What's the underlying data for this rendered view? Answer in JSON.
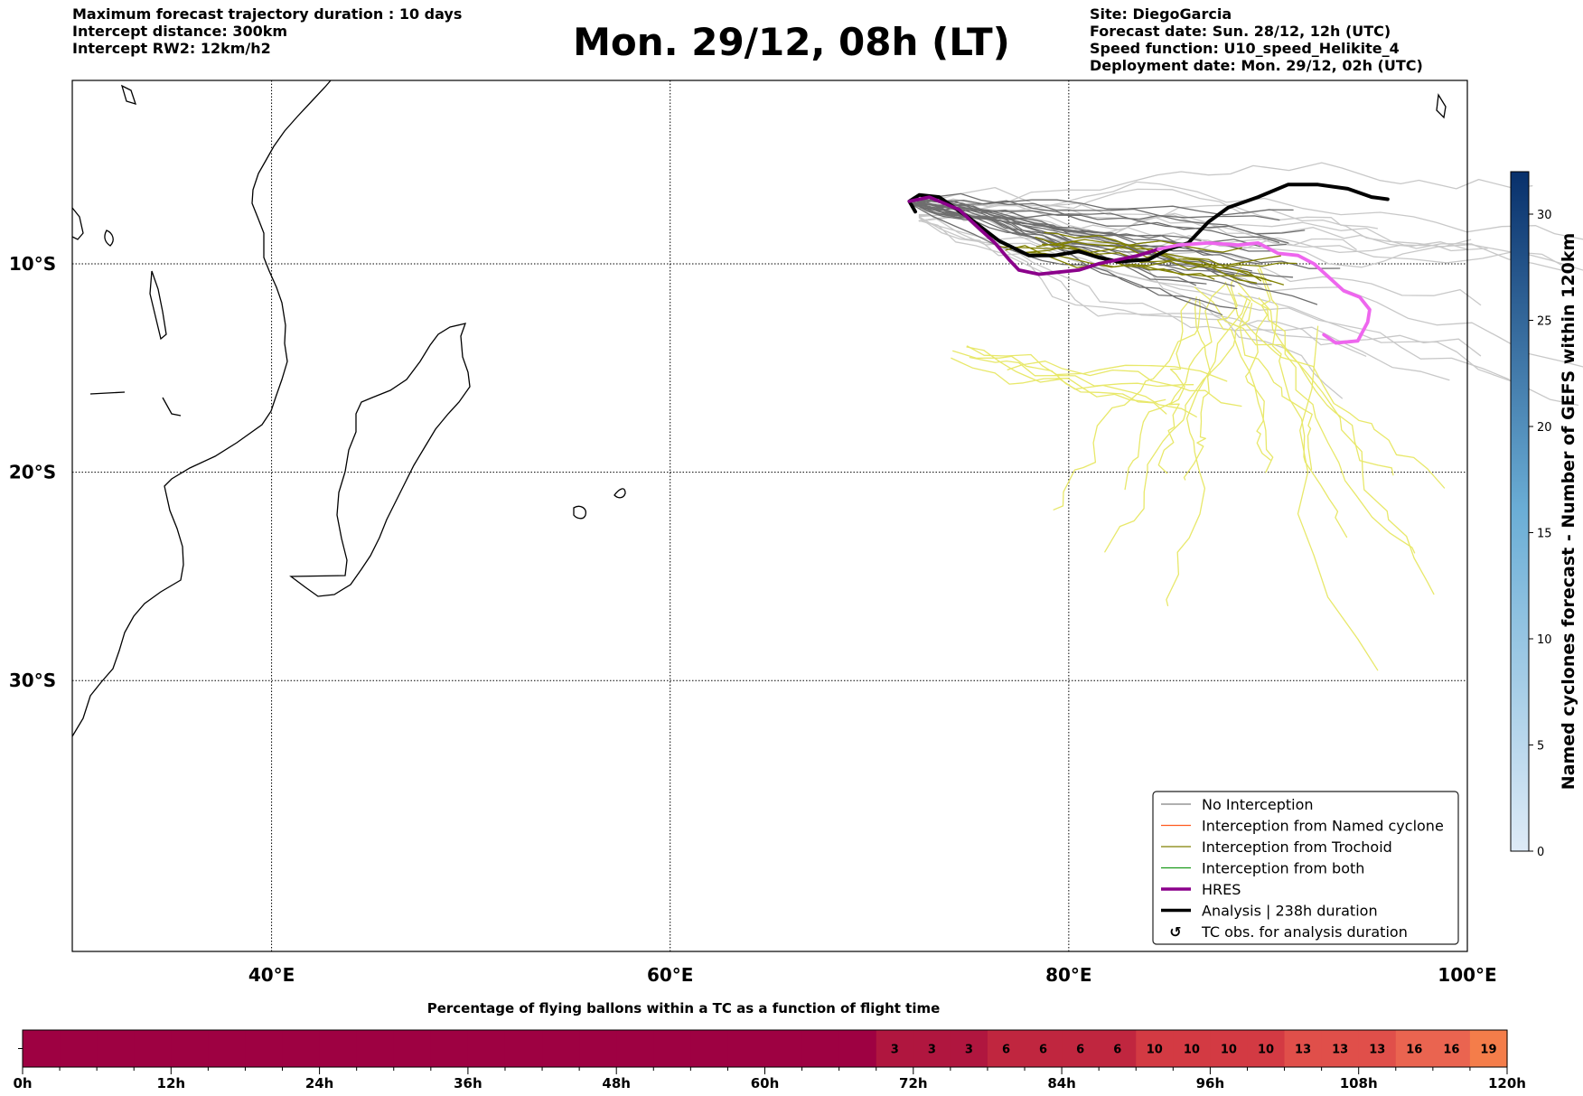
{
  "header": {
    "left": [
      "Maximum forecast trajectory duration : 10 days",
      "Intercept distance: 300km",
      "Intercept RW2: 12km/h2"
    ],
    "title": "Mon. 29/12, 08h (LT)",
    "right": [
      "Site: DiegoGarcia",
      "Forecast date: Sun. 28/12, 12h (UTC)",
      "Speed function: U10_speed_Helikite_4",
      "Deployment date: Mon. 29/12, 02h (UTC)"
    ]
  },
  "chart_data": [
    {
      "type": "line",
      "description_kind": "trajectory map",
      "xlim": [
        30,
        100
      ],
      "ylim": [
        -43,
        -1.2
      ],
      "x_ticks": [
        {
          "v": 40,
          "label": "40°E"
        },
        {
          "v": 60,
          "label": "60°E"
        },
        {
          "v": 80,
          "label": "80°E"
        },
        {
          "v": 100,
          "label": "100°E"
        }
      ],
      "y_ticks": [
        {
          "v": -10,
          "label": "10°S"
        },
        {
          "v": -20,
          "label": "20°S"
        },
        {
          "v": -30,
          "label": "30°S"
        }
      ],
      "grid": true,
      "legend_position": "bottom-right",
      "legend": [
        {
          "label": "No Interception",
          "color": "#808080",
          "width": 1.2,
          "kind": "line"
        },
        {
          "label": "Interception from Named cyclone",
          "color": "#ff5a1f",
          "width": 1.2,
          "kind": "line"
        },
        {
          "label": "Interception from Trochoid",
          "color": "#808000",
          "width": 1.2,
          "kind": "line"
        },
        {
          "label": "Interception from both",
          "color": "#1a9a1a",
          "width": 1.2,
          "kind": "line"
        },
        {
          "label": "HRES",
          "color": "#8b008b",
          "width": 3.5,
          "kind": "line"
        },
        {
          "label": "Analysis | 238h duration",
          "color": "#000000",
          "width": 3.5,
          "kind": "line"
        },
        {
          "label": "TC obs. for analysis duration",
          "color": "#000000",
          "kind": "symbol",
          "symbol": "↺"
        }
      ],
      "series": [
        {
          "name": "Analysis | 238h duration",
          "color": "#000000",
          "points": [
            [
              72.3,
              -7.5
            ],
            [
              72.0,
              -7.0
            ],
            [
              72.5,
              -6.7
            ],
            [
              73.5,
              -6.8
            ],
            [
              75.0,
              -7.8
            ],
            [
              76.5,
              -8.9
            ],
            [
              78.0,
              -9.6
            ],
            [
              79.3,
              -9.6
            ],
            [
              80.5,
              -9.4
            ],
            [
              81.5,
              -9.7
            ],
            [
              82.5,
              -9.9
            ],
            [
              84.0,
              -9.8
            ],
            [
              85.0,
              -9.3
            ],
            [
              86.0,
              -9.0
            ],
            [
              87.0,
              -8.0
            ],
            [
              88.0,
              -7.3
            ],
            [
              89.5,
              -6.8
            ],
            [
              91.0,
              -6.2
            ],
            [
              92.5,
              -6.2
            ],
            [
              94.0,
              -6.4
            ],
            [
              95.2,
              -6.8
            ],
            [
              96.0,
              -6.9
            ]
          ]
        },
        {
          "name": "HRES",
          "color": "#8b008b",
          "points": [
            [
              72.0,
              -7.0
            ],
            [
              73.0,
              -6.8
            ],
            [
              74.5,
              -7.4
            ],
            [
              75.5,
              -8.3
            ],
            [
              76.3,
              -9.0
            ],
            [
              77.0,
              -9.8
            ],
            [
              77.5,
              -10.3
            ],
            [
              78.5,
              -10.5
            ],
            [
              79.5,
              -10.4
            ],
            [
              80.5,
              -10.3
            ],
            [
              81.5,
              -10.0
            ],
            [
              82.5,
              -9.8
            ],
            [
              83.5,
              -9.6
            ],
            [
              84.5,
              -9.3
            ]
          ]
        },
        {
          "name": "HRES continuation",
          "color": "#ee66ee",
          "points": [
            [
              84.5,
              -9.3
            ],
            [
              85.5,
              -9.1
            ],
            [
              87.0,
              -9.0
            ],
            [
              88.5,
              -9.1
            ],
            [
              89.5,
              -9.0
            ],
            [
              90.5,
              -9.5
            ],
            [
              91.5,
              -9.6
            ],
            [
              92.3,
              -10.0
            ],
            [
              93.0,
              -10.6
            ],
            [
              93.8,
              -11.3
            ],
            [
              94.6,
              -11.6
            ],
            [
              95.1,
              -12.2
            ],
            [
              95.0,
              -12.8
            ],
            [
              94.5,
              -13.7
            ],
            [
              93.4,
              -13.8
            ],
            [
              92.8,
              -13.4
            ]
          ]
        }
      ]
    },
    {
      "type": "heatmap",
      "title": "Percentage of flying ballons within a TC as a function of flight time",
      "x_ticks": [
        "0h",
        "12h",
        "24h",
        "36h",
        "48h",
        "60h",
        "72h",
        "84h",
        "96h",
        "108h",
        "120h"
      ],
      "xlim": [
        0,
        120
      ],
      "bin_hours": 3,
      "values": [
        0,
        0,
        0,
        0,
        0,
        0,
        0,
        0,
        0,
        0,
        0,
        0,
        0,
        0,
        0,
        0,
        0,
        0,
        0,
        0,
        0,
        0,
        0,
        3,
        3,
        3,
        6,
        6,
        6,
        6,
        10,
        10,
        10,
        10,
        13,
        13,
        13,
        16,
        16,
        19
      ]
    },
    {
      "type": "heatmap",
      "colorbar": true,
      "label": "Named cyclones forecast - Number of GEFS within 120km",
      "ticks": [
        0,
        5,
        10,
        15,
        20,
        25,
        30
      ],
      "range": [
        0,
        32
      ],
      "colors": [
        "#deebf7",
        "#08306b"
      ]
    }
  ]
}
